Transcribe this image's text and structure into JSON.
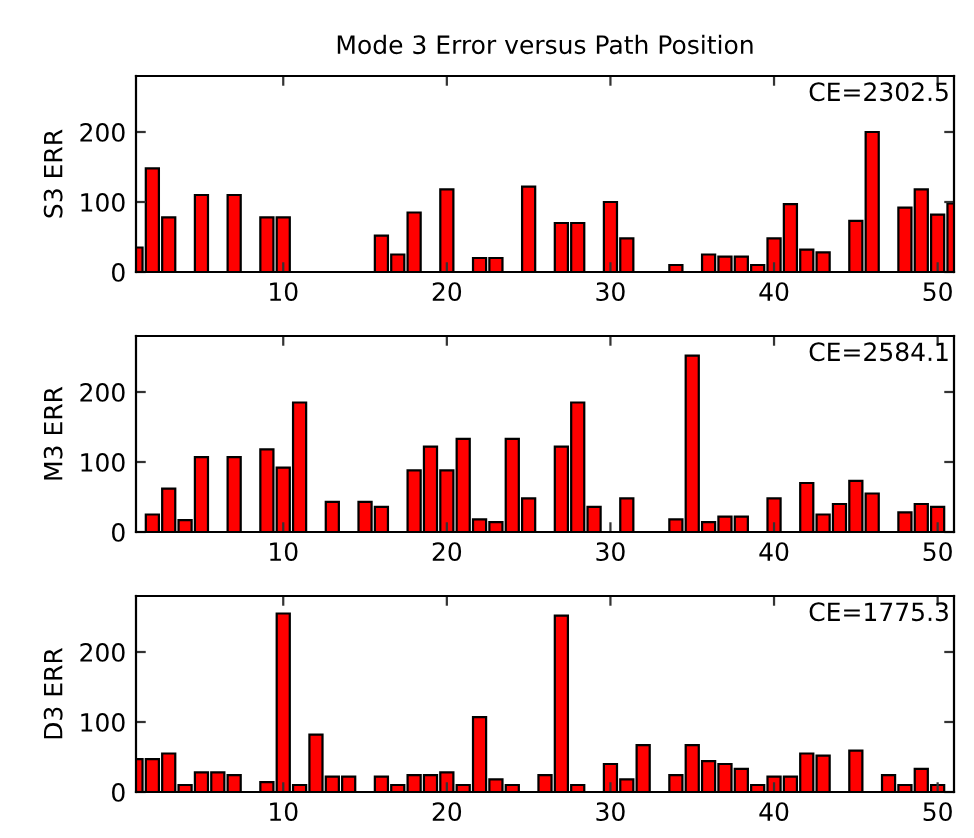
{
  "chart_data": [
    {
      "type": "bar",
      "title": "Mode 3 Error versus Path Position",
      "ylabel": "S3 ERR",
      "annotations": [
        "CE=2302.5"
      ],
      "color": "#ff0000",
      "xlim": [
        1,
        51
      ],
      "ylim": [
        0,
        280
      ],
      "xticks": [
        10,
        20,
        30,
        40,
        50
      ],
      "yticks": [
        0,
        100,
        200
      ],
      "grid": false,
      "x": [
        1,
        2,
        3,
        5,
        7,
        9,
        10,
        16,
        17,
        18,
        20,
        22,
        23,
        25,
        27,
        28,
        30,
        31,
        34,
        36,
        37,
        38,
        39,
        40,
        41,
        42,
        43,
        45,
        46,
        48,
        49,
        50,
        51
      ],
      "values": [
        35,
        148,
        78,
        110,
        110,
        78,
        78,
        52,
        25,
        85,
        118,
        20,
        20,
        122,
        70,
        70,
        100,
        48,
        10,
        25,
        22,
        22,
        10,
        48,
        97,
        32,
        28,
        73,
        200,
        92,
        118,
        82,
        98
      ]
    },
    {
      "type": "bar",
      "ylabel": "M3 ERR",
      "annotations": [
        "CE=2584.1"
      ],
      "color": "#ff0000",
      "xlim": [
        1,
        51
      ],
      "ylim": [
        0,
        280
      ],
      "xticks": [
        10,
        20,
        30,
        40,
        50
      ],
      "yticks": [
        0,
        100,
        200
      ],
      "grid": false,
      "x": [
        2,
        3,
        4,
        5,
        7,
        9,
        10,
        11,
        13,
        15,
        16,
        18,
        19,
        20,
        21,
        22,
        23,
        24,
        25,
        27,
        28,
        29,
        31,
        34,
        35,
        36,
        37,
        38,
        40,
        42,
        43,
        44,
        45,
        46,
        48,
        49,
        50
      ],
      "values": [
        25,
        62,
        17,
        107,
        107,
        118,
        92,
        185,
        43,
        43,
        36,
        88,
        122,
        88,
        133,
        18,
        14,
        133,
        48,
        122,
        185,
        36,
        48,
        18,
        252,
        14,
        22,
        22,
        48,
        70,
        25,
        40,
        73,
        55,
        28,
        40,
        36
      ]
    },
    {
      "type": "bar",
      "ylabel": "D3 ERR",
      "annotations": [
        "CE=1775.3"
      ],
      "color": "#ff0000",
      "xlim": [
        1,
        51
      ],
      "ylim": [
        0,
        280
      ],
      "xticks": [
        10,
        20,
        30,
        40,
        50
      ],
      "yticks": [
        0,
        100,
        200
      ],
      "grid": false,
      "x": [
        1,
        2,
        3,
        4,
        5,
        6,
        7,
        9,
        10,
        11,
        12,
        13,
        14,
        16,
        17,
        18,
        19,
        20,
        21,
        22,
        23,
        24,
        26,
        27,
        28,
        30,
        31,
        32,
        34,
        35,
        36,
        37,
        38,
        39,
        40,
        41,
        42,
        43,
        45,
        47,
        48,
        49,
        50
      ],
      "values": [
        47,
        47,
        55,
        10,
        28,
        28,
        24,
        14,
        255,
        10,
        82,
        22,
        22,
        22,
        10,
        24,
        24,
        28,
        10,
        107,
        18,
        10,
        24,
        252,
        10,
        40,
        18,
        67,
        24,
        67,
        44,
        40,
        33,
        10,
        22,
        22,
        55,
        52,
        59,
        24,
        10,
        33,
        10
      ]
    }
  ]
}
